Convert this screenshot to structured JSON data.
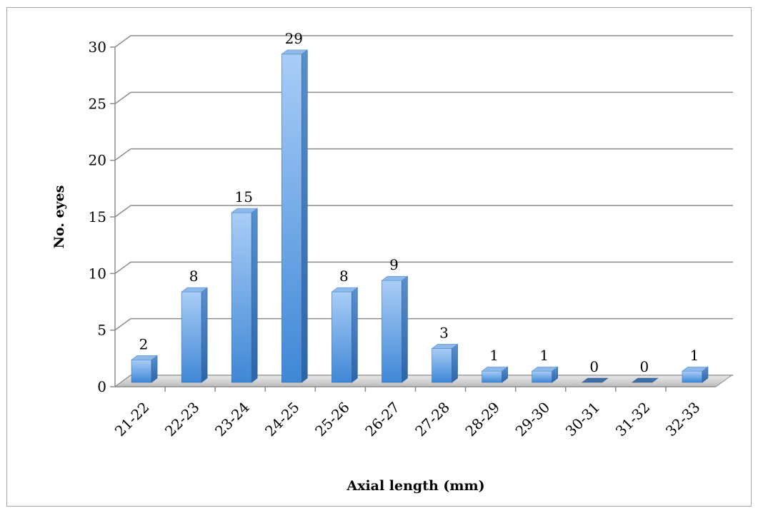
{
  "chart_data": {
    "type": "bar",
    "categories": [
      "21-22",
      "22-23",
      "23-24",
      "24-25",
      "25-26",
      "26-27",
      "27-28",
      "28-29",
      "29-30",
      "30-31",
      "31-32",
      "32-33"
    ],
    "values": [
      2,
      8,
      15,
      29,
      8,
      9,
      3,
      1,
      1,
      0,
      0,
      1
    ],
    "title": "",
    "xlabel": "Axial length (mm)",
    "ylabel": "No. eyes",
    "ylim": [
      0,
      30
    ],
    "yticks": [
      0,
      5,
      10,
      15,
      20,
      25,
      30
    ],
    "grid": true,
    "legend": "none",
    "style": "3d-column",
    "bar_color": "#5b9bd5"
  }
}
